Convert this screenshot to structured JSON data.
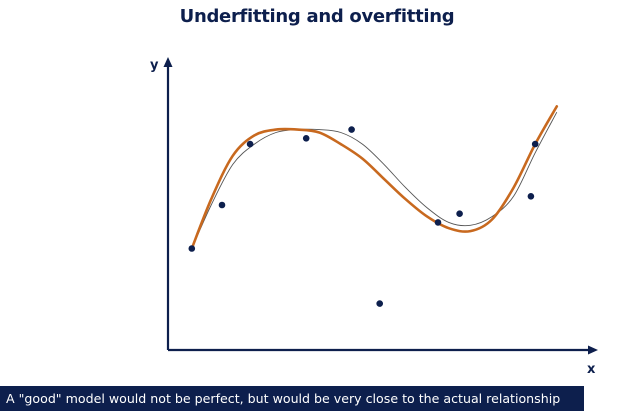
{
  "title": "Underfitting and overfitting",
  "caption": "A \"good\" model would not be perfect, but would be very close to the actual relationship",
  "colors": {
    "navy": "#0d1f4d",
    "fit_curve": "#c8691f",
    "true_curve": "#555555"
  },
  "chart_data": {
    "type": "scatter",
    "title": "Underfitting and overfitting",
    "xlabel": "x",
    "ylabel": "y",
    "xlim": [
      0,
      10
    ],
    "ylim": [
      0,
      10
    ],
    "grid": false,
    "points": [
      {
        "x": 0.55,
        "y": 3.5
      },
      {
        "x": 1.25,
        "y": 5.0
      },
      {
        "x": 1.9,
        "y": 7.1
      },
      {
        "x": 3.2,
        "y": 7.3
      },
      {
        "x": 4.25,
        "y": 7.6
      },
      {
        "x": 4.9,
        "y": 1.6
      },
      {
        "x": 6.25,
        "y": 4.4
      },
      {
        "x": 6.75,
        "y": 4.7
      },
      {
        "x": 8.4,
        "y": 5.3
      },
      {
        "x": 8.5,
        "y": 7.1
      }
    ],
    "series": [
      {
        "style": "thick-orange",
        "x": [
          0.55,
          1.0,
          1.5,
          2.0,
          2.5,
          3.0,
          3.5,
          4.0,
          4.5,
          5.0,
          5.5,
          6.0,
          6.5,
          7.0,
          7.5,
          8.0,
          8.5,
          9.0
        ],
        "y": [
          3.5,
          5.2,
          6.7,
          7.4,
          7.6,
          7.6,
          7.5,
          7.1,
          6.6,
          5.9,
          5.2,
          4.6,
          4.2,
          4.1,
          4.5,
          5.6,
          7.1,
          8.4
        ]
      },
      {
        "style": "thin-gray",
        "x": [
          0.55,
          1.0,
          1.5,
          2.0,
          2.5,
          3.0,
          3.5,
          4.0,
          4.5,
          5.0,
          5.5,
          6.0,
          6.5,
          7.0,
          7.5,
          8.0,
          8.5,
          9.0
        ],
        "y": [
          3.5,
          5.0,
          6.4,
          7.1,
          7.5,
          7.6,
          7.6,
          7.5,
          7.1,
          6.4,
          5.6,
          4.9,
          4.4,
          4.3,
          4.6,
          5.3,
          6.8,
          8.2
        ]
      }
    ]
  }
}
